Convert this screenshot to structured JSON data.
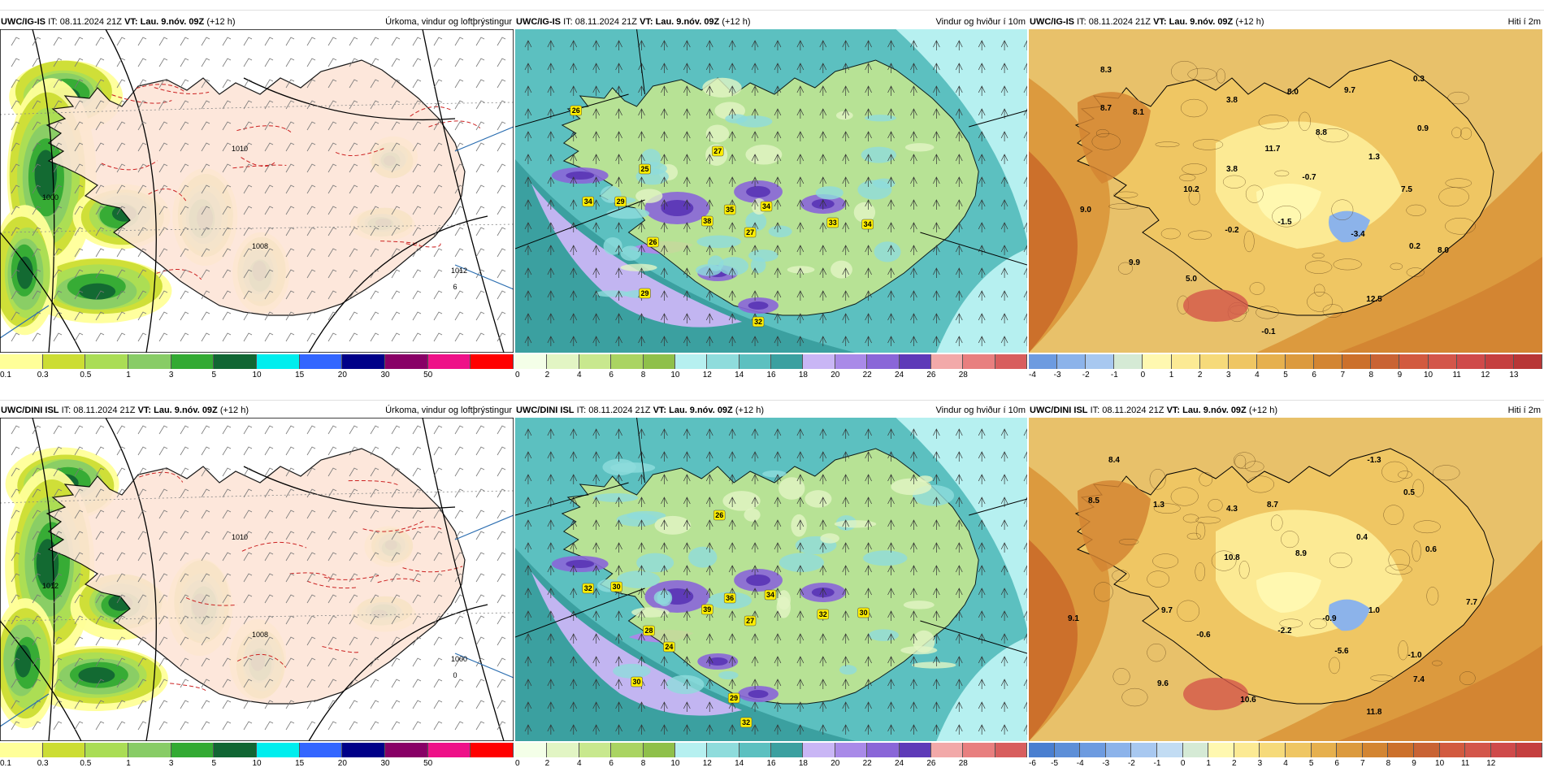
{
  "panels": [
    {
      "id": "r1c1",
      "model": "UWC/IG-IS",
      "it_label": "IT:",
      "it": "08.11.2024 21Z",
      "vt_label": "VT:",
      "vt": "Lau. 9.nóv. 09Z",
      "lead": "(+12 h)",
      "title": "Úrkoma, vindur og loftþrýstingur",
      "kind": "precip",
      "scale": {
        "ticks": [
          "0.1",
          "0.3",
          "0.5",
          "1",
          "3",
          "5",
          "10",
          "15",
          "20",
          "30",
          "50"
        ],
        "colors": [
          "#ffff99",
          "#ccdd33",
          "#aadd55",
          "#88cc66",
          "#33aa33",
          "#116633",
          "#00eeee",
          "#3366ff",
          "#000088",
          "#880066",
          "#ee1188",
          "#ff0000"
        ]
      },
      "isobars": [
        "1010",
        "1000",
        "1012",
        "1008",
        "6"
      ]
    },
    {
      "id": "r1c2",
      "model": "UWC/IG-IS",
      "it_label": "IT:",
      "it": "08.11.2024 21Z",
      "vt_label": "VT:",
      "vt": "Lau. 9.nóv. 09Z",
      "lead": "(+12 h)",
      "title": "Vindur og hviður í 10m",
      "kind": "wind",
      "scale": {
        "ticks": [
          "0",
          "2",
          "4",
          "6",
          "8",
          "10",
          "12",
          "14",
          "16",
          "18",
          "20",
          "22",
          "24",
          "26",
          "28"
        ],
        "colors": [
          "#f4ffe8",
          "#e2f5c4",
          "#c8e88e",
          "#aad462",
          "#8fc04a",
          "#b6f0f0",
          "#8fdcdc",
          "#5cc0c0",
          "#3ba0a0",
          "#c9b6f5",
          "#a98ae8",
          "#8a66d8",
          "#5e3ab8",
          "#f2a9a9",
          "#e87f7f",
          "#d85e5e"
        ]
      },
      "gusts": [
        "26",
        "27",
        "25",
        "34",
        "29",
        "35",
        "34",
        "38",
        "27",
        "33",
        "34",
        "26",
        "29",
        "32"
      ]
    },
    {
      "id": "r1c3",
      "model": "UWC/IG-IS",
      "it_label": "IT:",
      "it": "08.11.2024 21Z",
      "vt_label": "VT:",
      "vt": "Lau. 9.nóv. 09Z",
      "lead": "(+12 h)",
      "title": "Hiti í 2m",
      "kind": "temp",
      "scale": {
        "ticks": [
          "-4",
          "-3",
          "-2",
          "-1",
          "0",
          "1",
          "2",
          "3",
          "4",
          "5",
          "6",
          "7",
          "8",
          "9",
          "10",
          "11",
          "12",
          "13"
        ],
        "colors": [
          "#6d9be0",
          "#8cb3ea",
          "#a8c8f0",
          "#d5ead5",
          "#fff8b0",
          "#fcea94",
          "#f6da7a",
          "#efc663",
          "#e6b04e",
          "#dc9a3e",
          "#d38532",
          "#cc702b",
          "#c96334",
          "#d25a3f",
          "#d3564a",
          "#cf4a4a",
          "#c53f3f",
          "#b83636"
        ]
      },
      "temps": [
        "8.3",
        "8.7",
        "8.1",
        "3.8",
        "8.0",
        "9.7",
        "0.3",
        "11.7",
        "8.8",
        "0.9",
        "3.8",
        "1.3",
        "10.2",
        "-0.7",
        "9.0",
        "7.5",
        "-1.5",
        "-0.2",
        "-3.4",
        "0.2",
        "8.0",
        "9.9",
        "5.0",
        "12.5",
        "-0.1"
      ]
    },
    {
      "id": "r2c1",
      "model": "UWC/DINI ISL",
      "it_label": "IT:",
      "it": "08.11.2024 21Z",
      "vt_label": "VT:",
      "vt": "Lau. 9.nóv. 09Z",
      "lead": "(+12 h)",
      "title": "Úrkoma, vindur og loftþrýstingur",
      "kind": "precip",
      "scale": {
        "ticks": [
          "0.1",
          "0.3",
          "0.5",
          "1",
          "3",
          "5",
          "10",
          "15",
          "20",
          "30",
          "50"
        ],
        "colors": [
          "#ffff99",
          "#ccdd33",
          "#aadd55",
          "#88cc66",
          "#33aa33",
          "#116633",
          "#00eeee",
          "#3366ff",
          "#000088",
          "#880066",
          "#ee1188",
          "#ff0000"
        ]
      },
      "isobars": [
        "1010",
        "1012",
        "1000",
        "1008",
        "0"
      ]
    },
    {
      "id": "r2c2",
      "model": "UWC/DINI ISL",
      "it_label": "IT:",
      "it": "08.11.2024 21Z",
      "vt_label": "VT:",
      "vt": "Lau. 9.nóv. 09Z",
      "lead": "(+12 h)",
      "title": "Vindur og hviður í 10m",
      "kind": "wind",
      "scale": {
        "ticks": [
          "0",
          "2",
          "4",
          "6",
          "8",
          "10",
          "12",
          "14",
          "16",
          "18",
          "20",
          "22",
          "24",
          "26",
          "28"
        ],
        "colors": [
          "#f4ffe8",
          "#e2f5c4",
          "#c8e88e",
          "#aad462",
          "#8fc04a",
          "#b6f0f0",
          "#8fdcdc",
          "#5cc0c0",
          "#3ba0a0",
          "#c9b6f5",
          "#a98ae8",
          "#8a66d8",
          "#5e3ab8",
          "#f2a9a9",
          "#e87f7f",
          "#d85e5e"
        ]
      },
      "gusts": [
        "26",
        "32",
        "30",
        "36",
        "34",
        "39",
        "27",
        "32",
        "30",
        "28",
        "24",
        "30",
        "29",
        "32"
      ]
    },
    {
      "id": "r2c3",
      "model": "UWC/DINI ISL",
      "it_label": "IT:",
      "it": "08.11.2024 21Z",
      "vt_label": "VT:",
      "vt": "Lau. 9.nóv. 09Z",
      "lead": "(+12 h)",
      "title": "Hiti í 2m",
      "kind": "temp",
      "scale": {
        "ticks": [
          "-6",
          "-5",
          "-4",
          "-3",
          "-2",
          "-1",
          "0",
          "1",
          "2",
          "3",
          "4",
          "5",
          "6",
          "7",
          "8",
          "9",
          "10",
          "11",
          "12"
        ],
        "colors": [
          "#4a7fd0",
          "#5d8fd8",
          "#6d9be0",
          "#8cb3ea",
          "#a8c8f0",
          "#c2dcf3",
          "#d5ead5",
          "#fff8b0",
          "#fcea94",
          "#f6da7a",
          "#efc663",
          "#e6b04e",
          "#dc9a3e",
          "#d38532",
          "#cc702b",
          "#c96334",
          "#d25a3f",
          "#d3564a",
          "#cf4a4a",
          "#c53f3f"
        ]
      },
      "temps": [
        "8.4",
        "1.3",
        "-1.3",
        "8.5",
        "4.3",
        "8.7",
        "0.5",
        "10.8",
        "8.9",
        "0.4",
        "0.6",
        "9.7",
        "1.0",
        "9.1",
        "-0.9",
        "7.7",
        "-0.6",
        "-2.2",
        "-5.6",
        "-1.0",
        "7.4",
        "9.6",
        "10.6",
        "11.8"
      ]
    }
  ]
}
